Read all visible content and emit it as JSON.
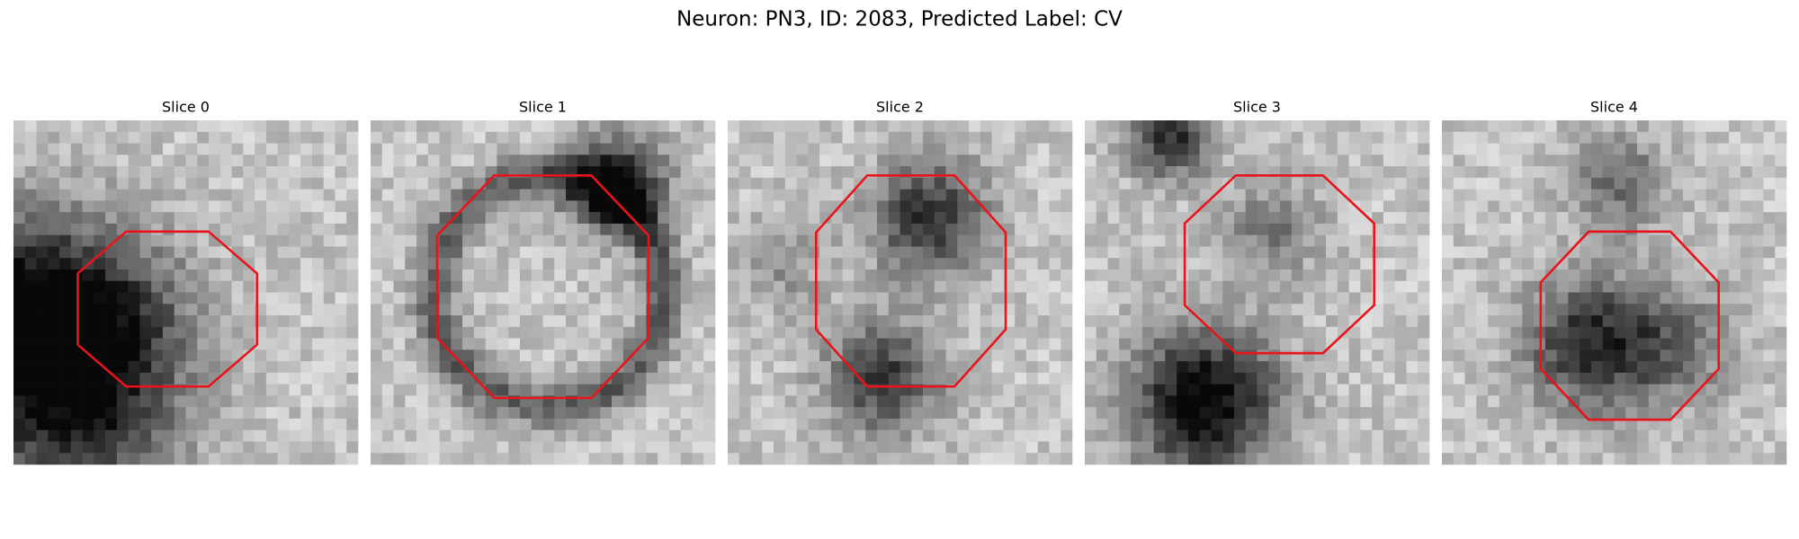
{
  "title": "Neuron: PN3, ID: 2083, Predicted Label: CV",
  "panels": [
    {
      "title": "Slice 0"
    },
    {
      "title": "Slice 1"
    },
    {
      "title": "Slice 2"
    },
    {
      "title": "Slice 3"
    },
    {
      "title": "Slice 4"
    }
  ]
}
